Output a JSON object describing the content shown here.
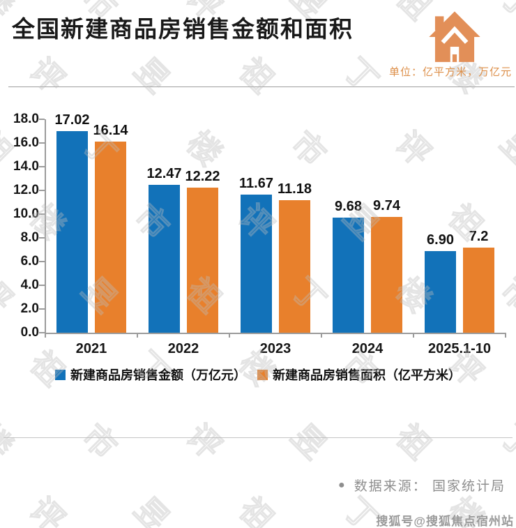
{
  "header": {
    "title": "全国新建商品房销售金额和面积",
    "unit_label": "单位：亿平方米，万亿元"
  },
  "chart_data": {
    "type": "bar",
    "title": "全国新建商品房销售金额和面积",
    "categories": [
      "2021",
      "2022",
      "2023",
      "2024",
      "2025.1-10"
    ],
    "series": [
      {
        "name": "新建商品房销售金额（万亿元）",
        "color": "#1272B9",
        "values": [
          17.02,
          12.47,
          11.67,
          9.68,
          6.9
        ],
        "labels": [
          "17.02",
          "12.47",
          "11.67",
          "9.68",
          "6.90"
        ]
      },
      {
        "name": "新建商品房销售面积（亿平方米）",
        "color": "#E8802C",
        "values": [
          16.14,
          12.22,
          11.18,
          9.74,
          7.2
        ],
        "labels": [
          "16.14",
          "12.22",
          "11.18",
          "9.74",
          "7.2"
        ]
      }
    ],
    "xlabel": "",
    "ylabel": "",
    "ylim": [
      0,
      18
    ],
    "ytick_step": 2,
    "ytick_labels": [
      "0.0",
      "2.0",
      "4.0",
      "6.0",
      "8.0",
      "10.0",
      "12.0",
      "14.0",
      "16.0",
      "18.0"
    ],
    "grid": false,
    "legend_position": "bottom"
  },
  "footer": {
    "source_bullet": "●",
    "source_label": "数据来源：  国家统计局",
    "publisher": "搜狐号@搜狐焦点宿州站"
  },
  "watermark": {
    "chars": [
      "楼",
      "市",
      "评",
      "昱",
      "祖",
      "丁"
    ]
  },
  "colors": {
    "bar_blue": "#1272B9",
    "bar_orange": "#E8802C",
    "house_icon": "#E28F58",
    "unit_text": "#DD8F49",
    "axis_gray": "#9b9b9b",
    "footer_gray": "#8e8e8e"
  }
}
